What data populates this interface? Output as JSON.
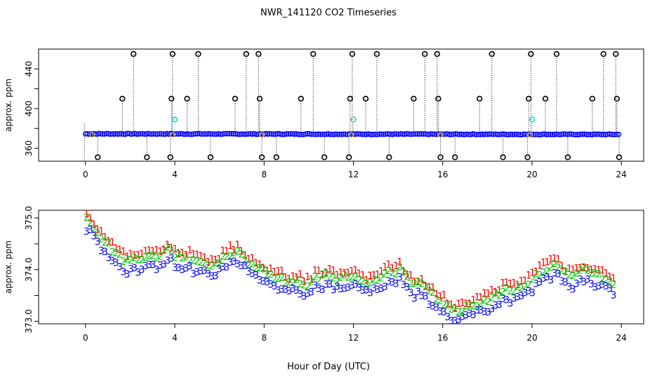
{
  "title": "NWR_141120  CO2 Timeseries",
  "xlabel": "Hour of Day (UTC)",
  "colors": {
    "series1": "#ff0000",
    "series2": "#00cc00",
    "series3": "#0000ff",
    "flagged": "#000000",
    "cyan": "#00cccc",
    "axis": "#000000",
    "yellow": "#e6c800"
  },
  "chart_data": [
    {
      "type": "scatter",
      "id": "top",
      "ylabel": "approx. ppm",
      "xlim": [
        -2.1,
        25
      ],
      "ylim": [
        347,
        460
      ],
      "xticks": [
        0,
        4,
        8,
        12,
        16,
        20,
        24
      ],
      "yticks": [
        360,
        400,
        440
      ],
      "baseline_description": "dense blue points near 374-375 ppm across 0-24 h",
      "high_outliers": [
        {
          "x": 1.65,
          "y": 410
        },
        {
          "x": 2.15,
          "y": 455
        },
        {
          "x": 3.85,
          "y": 410
        },
        {
          "x": 3.9,
          "y": 455
        },
        {
          "x": 4.55,
          "y": 410
        },
        {
          "x": 5.05,
          "y": 455
        },
        {
          "x": 6.7,
          "y": 410
        },
        {
          "x": 7.2,
          "y": 455
        },
        {
          "x": 7.75,
          "y": 455
        },
        {
          "x": 7.8,
          "y": 410
        },
        {
          "x": 9.65,
          "y": 410
        },
        {
          "x": 10.2,
          "y": 455
        },
        {
          "x": 11.85,
          "y": 410
        },
        {
          "x": 11.95,
          "y": 455
        },
        {
          "x": 12.55,
          "y": 410
        },
        {
          "x": 13.05,
          "y": 455
        },
        {
          "x": 14.7,
          "y": 410
        },
        {
          "x": 15.2,
          "y": 455
        },
        {
          "x": 15.75,
          "y": 455
        },
        {
          "x": 15.8,
          "y": 410
        },
        {
          "x": 17.65,
          "y": 410
        },
        {
          "x": 18.2,
          "y": 455
        },
        {
          "x": 19.85,
          "y": 410
        },
        {
          "x": 19.95,
          "y": 455
        },
        {
          "x": 20.6,
          "y": 410
        },
        {
          "x": 21.1,
          "y": 455
        },
        {
          "x": 22.7,
          "y": 410
        },
        {
          "x": 23.2,
          "y": 455
        },
        {
          "x": 23.75,
          "y": 455
        },
        {
          "x": 23.8,
          "y": 410
        }
      ],
      "low_outliers": [
        {
          "x": 0.55,
          "y": 351
        },
        {
          "x": 2.75,
          "y": 351
        },
        {
          "x": 3.8,
          "y": 351
        },
        {
          "x": 5.6,
          "y": 351
        },
        {
          "x": 7.9,
          "y": 351
        },
        {
          "x": 8.55,
          "y": 351
        },
        {
          "x": 10.7,
          "y": 351
        },
        {
          "x": 11.8,
          "y": 351
        },
        {
          "x": 13.6,
          "y": 351
        },
        {
          "x": 15.9,
          "y": 351
        },
        {
          "x": 16.55,
          "y": 351
        },
        {
          "x": 18.7,
          "y": 351
        },
        {
          "x": 19.8,
          "y": 351
        },
        {
          "x": 21.6,
          "y": 351
        },
        {
          "x": 23.9,
          "y": 351
        }
      ],
      "cyan_points": [
        {
          "x": 4.0,
          "y": 389
        },
        {
          "x": 12.0,
          "y": 389
        },
        {
          "x": 20.0,
          "y": 389
        }
      ]
    },
    {
      "type": "scatter",
      "id": "bottom",
      "ylabel": "approx. ppm",
      "xlim": [
        -2.1,
        25
      ],
      "ylim": [
        372.95,
        375.15
      ],
      "xticks": [
        0,
        4,
        8,
        12,
        16,
        20,
        24
      ],
      "yticks": [
        373.0,
        374.0,
        375.0
      ],
      "ytick_labels": [
        "373.0",
        "374.0",
        "375.0"
      ],
      "series": [
        {
          "name": "1",
          "symbol": "1",
          "offset": 0.1
        },
        {
          "name": "2",
          "symbol": "2",
          "offset": 0.0
        },
        {
          "name": "3",
          "symbol": "3",
          "offset": -0.2
        }
      ],
      "base_curve": {
        "x": [
          0.0,
          0.15,
          0.4,
          0.7,
          1.0,
          1.3,
          1.6,
          1.9,
          2.2,
          2.5,
          2.8,
          3.0,
          3.3,
          3.6,
          3.8,
          4.0,
          4.3,
          4.6,
          4.9,
          5.2,
          5.5,
          5.8,
          6.1,
          6.4,
          6.7,
          7.0,
          7.3,
          7.6,
          7.9,
          8.2,
          8.5,
          8.8,
          9.1,
          9.4,
          9.7,
          10.0,
          10.3,
          10.6,
          10.9,
          11.2,
          11.5,
          11.8,
          12.0,
          12.3,
          12.6,
          12.9,
          13.2,
          13.5,
          13.8,
          14.1,
          14.4,
          14.7,
          15.0,
          15.3,
          15.6,
          15.9,
          16.1,
          16.3,
          16.6,
          16.9,
          17.2,
          17.5,
          17.8,
          18.1,
          18.4,
          18.7,
          19.0,
          19.3,
          19.6,
          19.9,
          20.2,
          20.5,
          20.8,
          21.1,
          21.4,
          21.7,
          22.0,
          22.3,
          22.6,
          22.9,
          23.2,
          23.5,
          23.7
        ],
        "y": [
          374.95,
          375.0,
          374.8,
          374.6,
          374.5,
          374.35,
          374.25,
          374.15,
          374.2,
          374.15,
          374.3,
          374.3,
          374.2,
          374.4,
          374.4,
          374.3,
          374.2,
          374.25,
          374.15,
          374.15,
          374.1,
          374.1,
          374.2,
          374.3,
          374.35,
          374.3,
          374.15,
          374.05,
          374.0,
          373.9,
          373.85,
          373.85,
          373.75,
          373.8,
          373.75,
          373.7,
          373.85,
          373.85,
          373.9,
          373.8,
          373.9,
          373.85,
          373.9,
          373.8,
          373.75,
          373.85,
          373.8,
          373.95,
          373.95,
          374.0,
          373.85,
          373.7,
          373.75,
          373.6,
          373.55,
          373.4,
          373.35,
          373.25,
          373.2,
          373.25,
          373.3,
          373.35,
          373.4,
          373.45,
          373.5,
          373.6,
          373.6,
          373.65,
          373.7,
          373.75,
          373.9,
          374.0,
          374.05,
          374.1,
          373.95,
          373.85,
          373.9,
          374.0,
          373.95,
          373.9,
          373.85,
          373.8,
          373.75
        ]
      }
    }
  ]
}
